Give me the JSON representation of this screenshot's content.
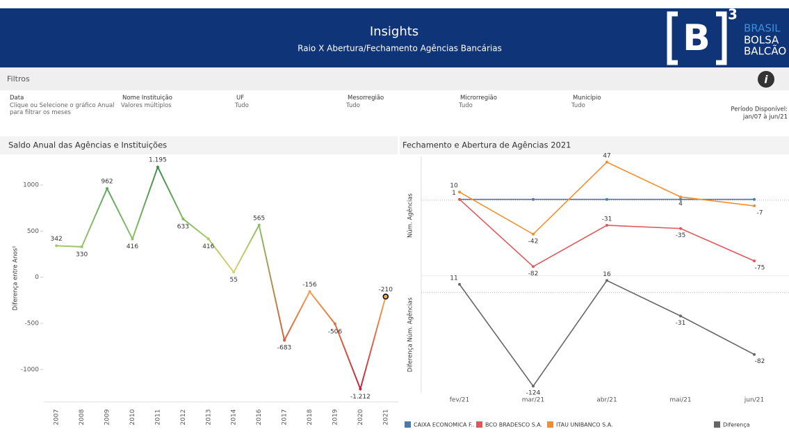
{
  "header": {
    "title": "Insights",
    "subtitle": "Raio X Abertura/Fechamento Agências Bancárias",
    "logo": "B",
    "logo_sup": "3",
    "brand": [
      "BRASIL",
      "BOLSA",
      "BALCÃO"
    ]
  },
  "filters": {
    "title": "Filtros",
    "info": "i",
    "items": [
      {
        "label": "Data",
        "value": "Clique ou Selecione o gráfico Anual para filtrar os meses"
      },
      {
        "label": "Nome Instituição",
        "value": "Valores múltiplos"
      },
      {
        "label": "UF",
        "value": "Tudo"
      },
      {
        "label": "Mesorregião",
        "value": "Tudo"
      },
      {
        "label": "Microrregião",
        "value": "Tudo"
      },
      {
        "label": "Município",
        "value": "Tudo"
      }
    ],
    "period_label": "Período Disponível:",
    "period": "jan/07 à jun/21"
  },
  "chart_data": [
    {
      "type": "line",
      "title": "Saldo Anual das Agências e Instituições",
      "ylabel": "Diferença entre Anos¹",
      "categories": [
        "2007",
        "2008",
        "2009",
        "2010",
        "2011",
        "2012",
        "2013",
        "2014",
        "2016",
        "2017",
        "2018",
        "2019",
        "2020",
        "2021"
      ],
      "values": [
        342,
        330,
        962,
        416,
        1195,
        633,
        416,
        55,
        565,
        -683,
        -156,
        -506,
        -1212,
        -210
      ],
      "value_labels": [
        "342",
        "330",
        "962",
        "416",
        "1.195",
        "633",
        "416",
        "55",
        "565",
        "-683",
        "-156",
        "-506",
        "-1.212",
        "-210"
      ],
      "point_colors": [
        "#a8c96a",
        "#9dc46a",
        "#5aa860",
        "#8fbf66",
        "#3e8c4f",
        "#7fb863",
        "#a9c86a",
        "#d8d36e",
        "#8cbd66",
        "#d95f3c",
        "#f0a054",
        "#e4733f",
        "#c3223e",
        "#f0a856"
      ],
      "highlight": 13,
      "ylim": [
        -1330,
        1310
      ],
      "yticks": [
        -1000,
        -500,
        0,
        500,
        1000
      ]
    },
    {
      "type": "panels",
      "title": "Fechamento e Abertura de Agências  2021",
      "categories": [
        "fev/21",
        "mar/21",
        "abr/21",
        "mai/21",
        "jun/21"
      ],
      "panels": [
        {
          "ylabel": "Núm. Agências",
          "ylim": [
            -92,
            54
          ],
          "reference_line": 0,
          "series": [
            {
              "name": "CAIXA ECONOMICA F..",
              "color": "#4e79a7",
              "values": [
                1,
                1,
                1,
                1,
                1
              ],
              "show_labels": false
            },
            {
              "name": "BCO BRADESCO S.A.",
              "color": "#e15759",
              "values": [
                1,
                -82,
                -31,
                -35,
                -75
              ],
              "show_labels": true
            },
            {
              "name": "ITAU UNIBANCO S.A.",
              "color": "#f28e2b",
              "values": [
                10,
                -42,
                47,
                4,
                -7
              ],
              "show_labels": true
            }
          ]
        },
        {
          "ylabel": "Diferença Núm. Agências",
          "ylim": [
            -133,
            21
          ],
          "reference_line": 0,
          "series": [
            {
              "name": "Diferença",
              "color": "#666666",
              "values": [
                11,
                -124,
                16,
                -31,
                -82
              ],
              "show_labels": true
            }
          ]
        }
      ]
    }
  ]
}
